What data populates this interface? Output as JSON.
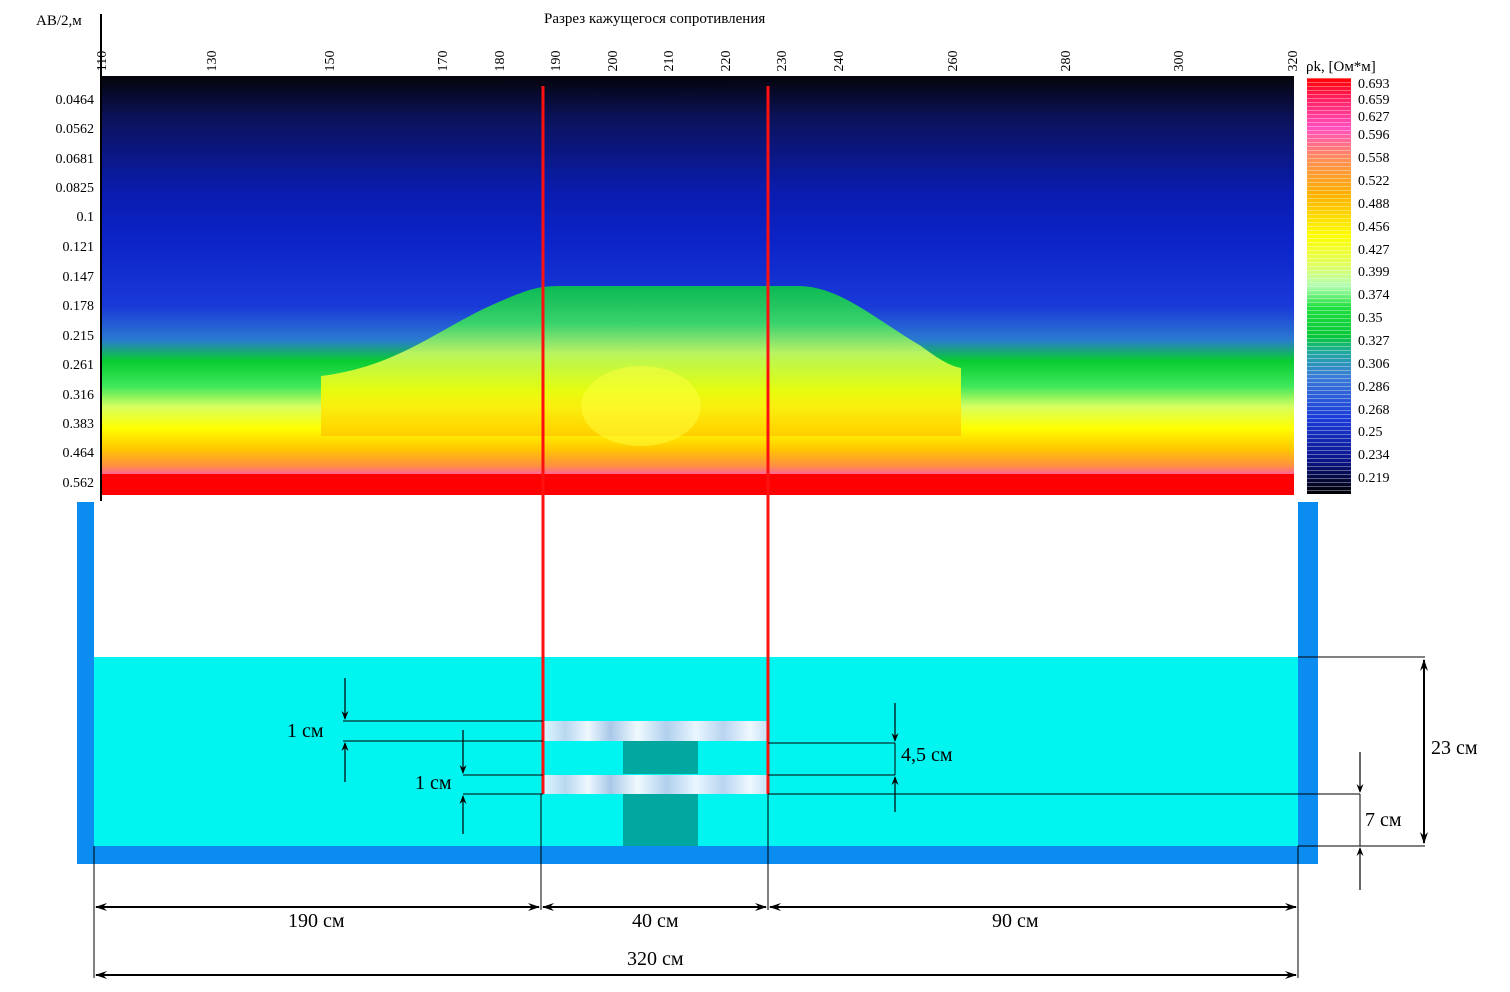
{
  "title": "Разрез кажущегося сопротивления",
  "y_axis_label": "AB/2,м",
  "colorbar_label": "ρk, [Ом*м]",
  "x_ticks": [
    "110",
    "130",
    "150",
    "170",
    "180",
    "190",
    "200",
    "210",
    "220",
    "230",
    "240",
    "260",
    "280",
    "300",
    "320"
  ],
  "y_ticks": [
    "0.0464",
    "0.0562",
    "0.0681",
    "0.0825",
    "0.1",
    "0.121",
    "0.147",
    "0.178",
    "0.215",
    "0.261",
    "0.316",
    "0.383",
    "0.464",
    "0.562"
  ],
  "colorbar_ticks": [
    "0.693",
    "0.659",
    "0.627",
    "0.596",
    "0.558",
    "0.522",
    "0.488",
    "0.456",
    "0.427",
    "0.399",
    "0.374",
    "0.35",
    "0.327",
    "0.306",
    "0.286",
    "0.268",
    "0.25",
    "0.234",
    "0.219"
  ],
  "colors": {
    "tank": "#0a8cf0",
    "water": "#00f5f0",
    "block": "#00a8a0",
    "marker": "#ff1010",
    "colormap": [
      "#000000",
      "#101860",
      "#0a1fae",
      "#1a3ad8",
      "#2a6ad0",
      "#0ad23c",
      "#3ee85a",
      "#d4ff40",
      "#ffff00",
      "#ffcf00",
      "#ffa030",
      "#ff80c0",
      "#ff40b0",
      "#ff0000"
    ]
  },
  "chart_data": {
    "type": "heatmap",
    "title": "Разрез кажущегося сопротивления",
    "xlabel": "",
    "ylabel": "AB/2,м",
    "x_range": [
      110,
      320
    ],
    "y_ticks": [
      0.0464,
      0.0562,
      0.0681,
      0.0825,
      0.1,
      0.121,
      0.147,
      0.178,
      0.215,
      0.261,
      0.316,
      0.383,
      0.464,
      0.562
    ],
    "y_scale": "log",
    "colorbar": {
      "label": "ρk, [Ом*м]",
      "min": 0.219,
      "max": 0.693
    },
    "markers_x": [
      190,
      230
    ]
  },
  "dims": {
    "layer1_thickness": "1 см",
    "layer2_thickness": "1 см",
    "spacing": "4,5 см",
    "water_depth": "23 см",
    "bottom_offset": "7 см",
    "left_length": "190 см",
    "mid_length": "40 см",
    "right_length": "90 см",
    "total_length": "320 см"
  }
}
